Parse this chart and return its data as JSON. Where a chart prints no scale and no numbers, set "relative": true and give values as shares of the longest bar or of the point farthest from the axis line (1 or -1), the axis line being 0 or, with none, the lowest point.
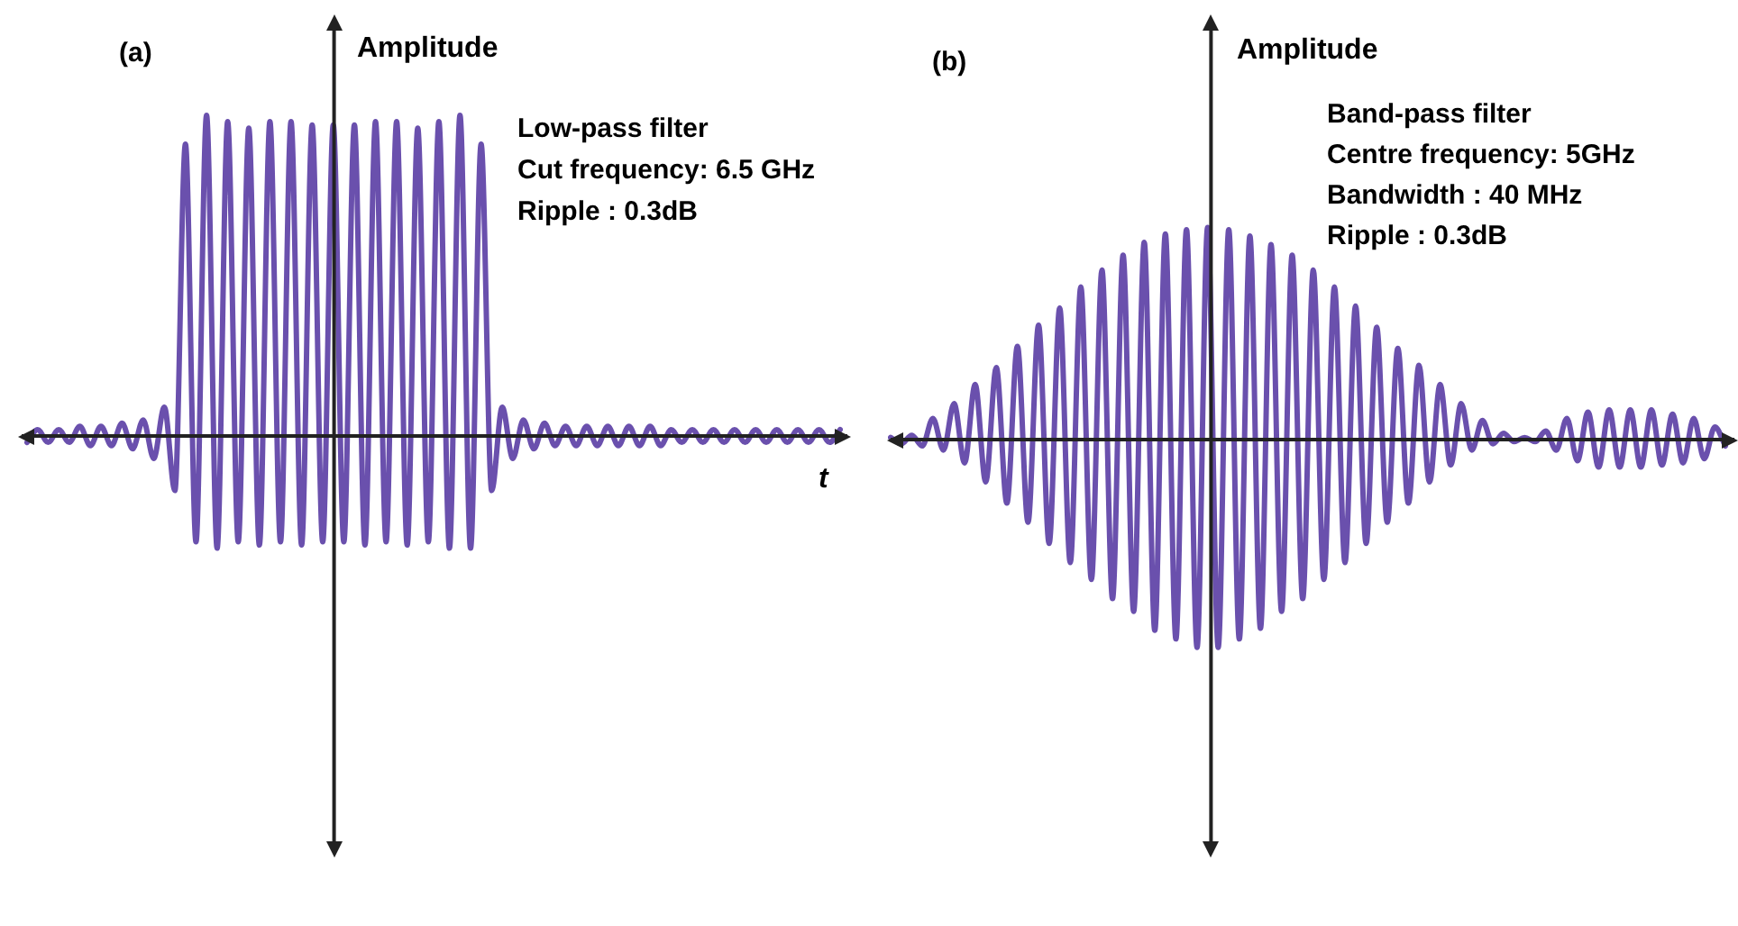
{
  "chart_data": [
    {
      "type": "line",
      "title": "(a)",
      "ylabel": "Amplitude",
      "xlabel": "t",
      "relative": true,
      "marker": "none",
      "annotations": [
        "Low-pass filter",
        "Cut frequency: 6.5 GHz",
        "Ripple : 0.3dB"
      ],
      "categories": [
        null,
        null,
        null,
        null,
        null,
        null,
        null,
        null,
        null,
        null,
        null,
        null,
        null,
        null,
        null,
        null,
        null,
        null,
        null,
        null,
        null,
        null,
        null,
        null,
        null,
        null,
        null,
        null,
        null,
        null,
        null,
        null,
        null,
        null,
        null,
        null,
        null,
        null,
        null,
        null,
        null,
        null,
        null,
        null,
        null,
        null,
        null,
        null,
        null,
        null,
        null,
        null,
        null,
        null,
        null,
        null,
        null,
        null,
        null,
        null,
        null,
        null,
        null,
        null,
        null,
        null,
        null,
        null,
        null,
        null,
        null,
        null,
        null,
        null,
        null,
        null,
        null,
        null
      ],
      "series": [
        {
          "color": "#6a50ad",
          "values": [
            -0.02,
            0.02,
            -0.02,
            0.02,
            -0.02,
            0.03,
            -0.03,
            0.03,
            -0.03,
            0.04,
            -0.04,
            0.05,
            -0.07,
            0.09,
            -0.17,
            0.91,
            -0.33,
            1.0,
            -0.35,
            0.98,
            -0.33,
            0.96,
            -0.34,
            0.98,
            -0.33,
            0.98,
            -0.34,
            0.97,
            -0.33,
            0.97,
            -0.33,
            0.97,
            -0.34,
            0.98,
            -0.33,
            0.98,
            -0.34,
            0.96,
            -0.33,
            0.98,
            -0.35,
            1.0,
            -0.35,
            0.91,
            -0.17,
            0.09,
            -0.07,
            0.05,
            -0.04,
            0.04,
            -0.03,
            0.03,
            -0.03,
            0.03,
            -0.03,
            0.03,
            -0.03,
            0.03,
            -0.03,
            0.03,
            -0.03,
            0.02,
            -0.02,
            0.02,
            -0.02,
            0.02,
            -0.02,
            0.02,
            -0.02,
            0.02,
            -0.02,
            0.02,
            -0.02,
            0.02,
            -0.02,
            0.02,
            -0.02,
            0.02
          ]
        }
      ]
    },
    {
      "type": "line",
      "title": "(b)",
      "ylabel": "Amplitude",
      "relative": true,
      "marker": "none",
      "annotations": [
        "Band-pass filter",
        "Centre frequency: 5GHz",
        "Bandwidth : 40 MHz",
        "Ripple : 0.3dB"
      ],
      "categories": [
        null,
        null,
        null,
        null,
        null,
        null,
        null,
        null,
        null,
        null,
        null,
        null,
        null,
        null,
        null,
        null,
        null,
        null,
        null,
        null,
        null,
        null,
        null,
        null,
        null,
        null,
        null,
        null,
        null,
        null,
        null,
        null,
        null,
        null,
        null,
        null,
        null,
        null,
        null,
        null,
        null,
        null,
        null,
        null,
        null,
        null,
        null,
        null,
        null,
        null,
        null,
        null,
        null,
        null,
        null,
        null,
        null,
        null,
        null,
        null,
        null,
        null,
        null,
        null,
        null,
        null,
        null,
        null,
        null,
        null,
        null,
        null,
        null,
        null,
        null,
        null,
        null,
        null,
        null,
        null
      ],
      "series": [
        {
          "color": "#6a50ad",
          "values": [
            0.01,
            -0.02,
            0.02,
            -0.03,
            0.1,
            -0.05,
            0.17,
            -0.11,
            0.26,
            -0.2,
            0.34,
            -0.3,
            0.44,
            -0.39,
            0.54,
            -0.49,
            0.62,
            -0.58,
            0.72,
            -0.66,
            0.8,
            -0.75,
            0.87,
            -0.81,
            0.93,
            -0.9,
            0.97,
            -0.94,
            0.99,
            -0.98,
            1.0,
            -0.98,
            0.99,
            -0.94,
            0.96,
            -0.89,
            0.92,
            -0.81,
            0.87,
            -0.75,
            0.8,
            -0.66,
            0.72,
            -0.58,
            0.63,
            -0.49,
            0.53,
            -0.39,
            0.43,
            -0.3,
            0.35,
            -0.2,
            0.26,
            -0.12,
            0.17,
            -0.05,
            0.09,
            -0.02,
            0.03,
            -0.01,
            0.01,
            -0.01,
            0.04,
            -0.05,
            0.1,
            -0.1,
            0.13,
            -0.13,
            0.14,
            -0.13,
            0.14,
            -0.13,
            0.14,
            -0.12,
            0.12,
            -0.11,
            0.1,
            -0.09,
            0.06,
            -0.03
          ]
        }
      ]
    }
  ]
}
